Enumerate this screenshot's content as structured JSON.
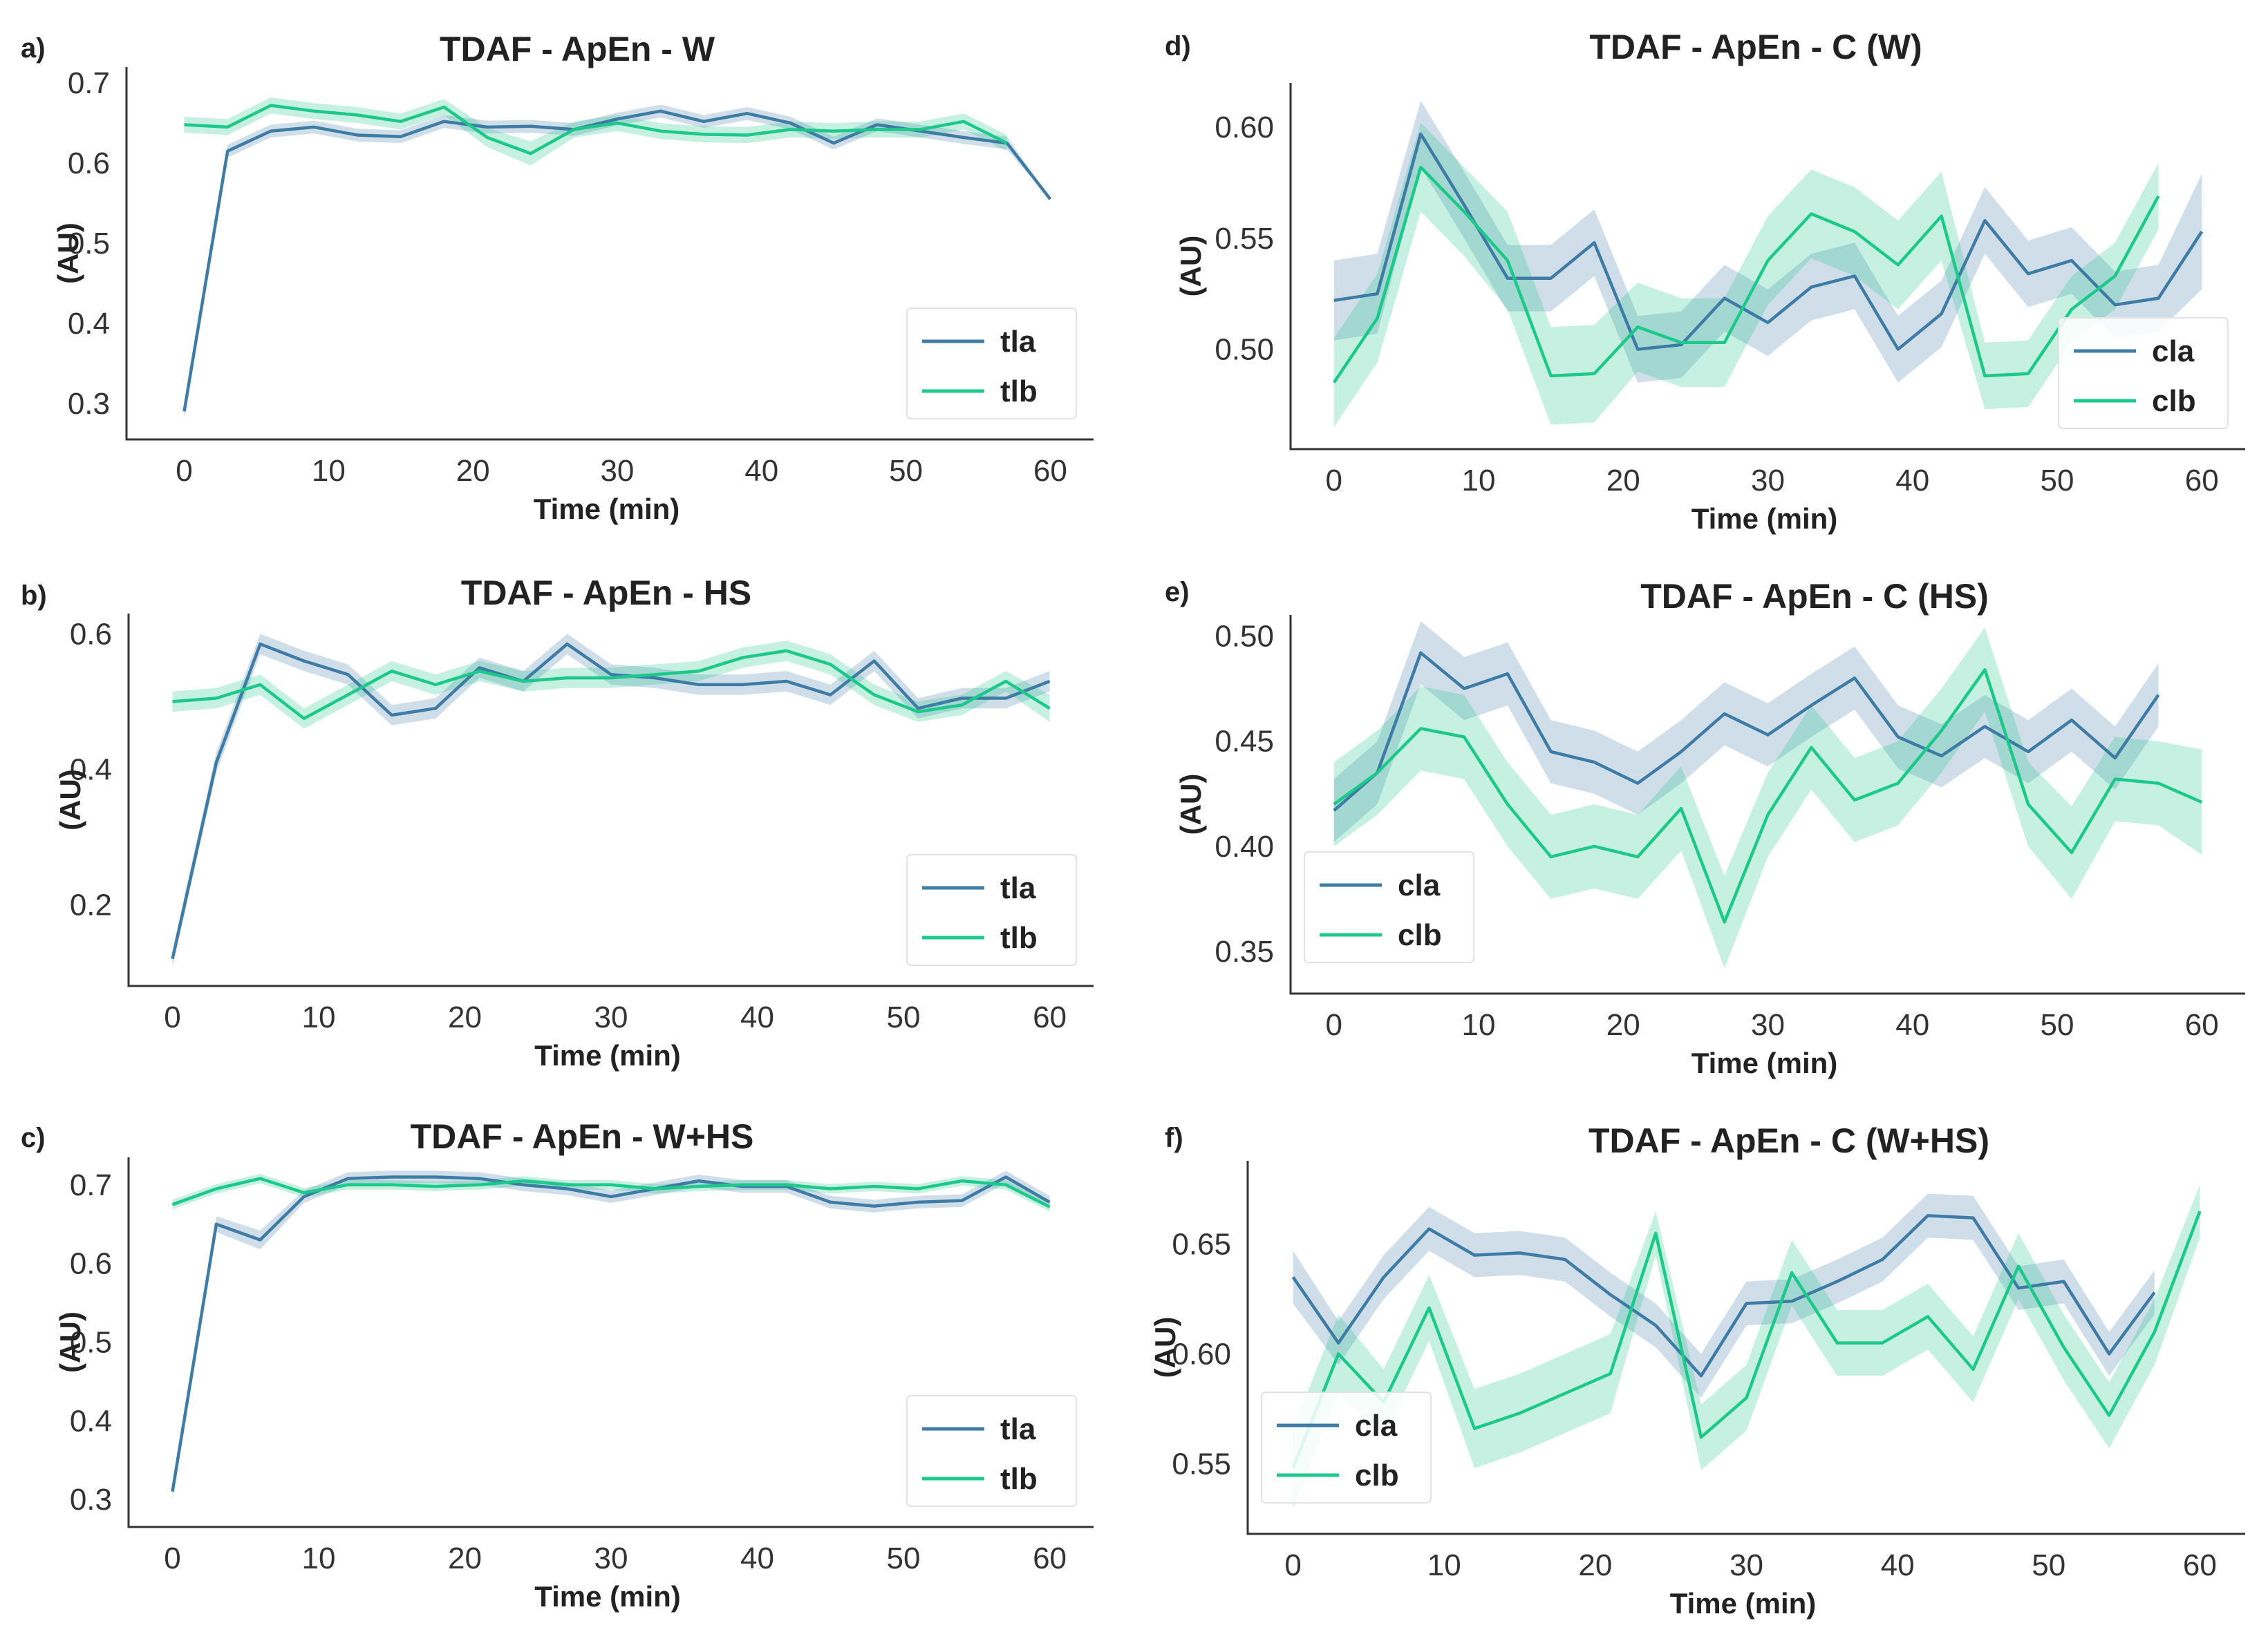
{
  "colors": {
    "a": "#3e7ca6",
    "b": "#1dc98a"
  },
  "chart_data": [
    {
      "id": "a",
      "panel_label": "a)",
      "type": "line",
      "title": "TDAF - ApEn - W",
      "xlabel": "Time (min)",
      "ylabel": "(AU)",
      "xlim": [
        -4,
        63
      ],
      "ylim": [
        0.255,
        0.72
      ],
      "xticks": [
        "0",
        "10",
        "20",
        "30",
        "40",
        "50",
        "60"
      ],
      "yticks": [
        "0.3",
        "0.4",
        "0.5",
        "0.6",
        "0.7"
      ],
      "legend_position": "bottom-right",
      "series": [
        {
          "name": "tla",
          "x": [
            0,
            3,
            6,
            9,
            12,
            15,
            18,
            21,
            24,
            27,
            30,
            33,
            36,
            39,
            42,
            45,
            48,
            51,
            54,
            57,
            60
          ],
          "y": [
            0.29,
            0.615,
            0.64,
            0.645,
            0.635,
            0.633,
            0.652,
            0.645,
            0.646,
            0.642,
            0.655,
            0.665,
            0.652,
            0.662,
            0.65,
            0.625,
            0.648,
            0.64,
            0.632,
            0.625,
            0.555
          ],
          "err": [
            0.008,
            0.008,
            0.008,
            0.008,
            0.008,
            0.008,
            0.008,
            0.008,
            0.008,
            0.008,
            0.008,
            0.008,
            0.008,
            0.008,
            0.008,
            0.008,
            0.008,
            0.008,
            0.008,
            0.008,
            0
          ]
        },
        {
          "name": "tlb",
          "x": [
            0,
            3,
            6,
            9,
            12,
            15,
            18,
            21,
            24,
            27,
            30,
            33,
            36,
            39,
            42,
            45,
            48,
            51,
            54,
            57
          ],
          "y": [
            0.648,
            0.645,
            0.672,
            0.665,
            0.66,
            0.652,
            0.67,
            0.632,
            0.612,
            0.642,
            0.65,
            0.64,
            0.636,
            0.635,
            0.642,
            0.64,
            0.642,
            0.642,
            0.652,
            0.625
          ],
          "err": [
            0.01,
            0.01,
            0.01,
            0.01,
            0.01,
            0.01,
            0.01,
            0.012,
            0.015,
            0.01,
            0.01,
            0.01,
            0.01,
            0.01,
            0.01,
            0.01,
            0.01,
            0.01,
            0.01,
            0.01
          ]
        }
      ]
    },
    {
      "id": "b",
      "panel_label": "b)",
      "type": "line",
      "title": "TDAF - ApEn - HS",
      "xlabel": "Time (min)",
      "ylabel": "(AU)",
      "xlim": [
        -3,
        63
      ],
      "ylim": [
        0.08,
        0.63
      ],
      "xticks": [
        "0",
        "10",
        "20",
        "30",
        "40",
        "50",
        "60"
      ],
      "yticks": [
        "0.2",
        "0.4",
        "0.6"
      ],
      "legend_position": "bottom-right",
      "series": [
        {
          "name": "tla",
          "x": [
            0,
            3,
            6,
            9,
            12,
            15,
            18,
            21,
            24,
            27,
            30,
            33,
            36,
            39,
            42,
            45,
            48,
            51,
            54,
            57,
            60
          ],
          "y": [
            0.12,
            0.41,
            0.585,
            0.56,
            0.54,
            0.48,
            0.49,
            0.55,
            0.53,
            0.585,
            0.54,
            0.535,
            0.525,
            0.525,
            0.53,
            0.51,
            0.56,
            0.49,
            0.505,
            0.505,
            0.53
          ],
          "err": [
            0.012,
            0.015,
            0.015,
            0.015,
            0.015,
            0.015,
            0.015,
            0.015,
            0.015,
            0.015,
            0.015,
            0.015,
            0.015,
            0.015,
            0.015,
            0.015,
            0.015,
            0.015,
            0.015,
            0.015,
            0.015
          ]
        },
        {
          "name": "tlb",
          "x": [
            0,
            3,
            6,
            9,
            12,
            15,
            18,
            21,
            24,
            27,
            30,
            33,
            36,
            39,
            42,
            45,
            48,
            51,
            54,
            57,
            60
          ],
          "y": [
            0.5,
            0.505,
            0.525,
            0.475,
            0.51,
            0.545,
            0.525,
            0.545,
            0.53,
            0.535,
            0.535,
            0.54,
            0.545,
            0.565,
            0.575,
            0.555,
            0.51,
            0.485,
            0.495,
            0.53,
            0.49
          ],
          "err": [
            0.015,
            0.015,
            0.015,
            0.015,
            0.015,
            0.015,
            0.015,
            0.015,
            0.015,
            0.015,
            0.015,
            0.015,
            0.015,
            0.015,
            0.015,
            0.015,
            0.015,
            0.015,
            0.015,
            0.015,
            0.02
          ]
        }
      ]
    },
    {
      "id": "c",
      "panel_label": "c)",
      "type": "line",
      "title": "TDAF - ApEn - W+HS",
      "xlabel": "Time (min)",
      "ylabel": "(AU)",
      "xlim": [
        -3,
        63
      ],
      "ylim": [
        0.265,
        0.735
      ],
      "xticks": [
        "0",
        "10",
        "20",
        "30",
        "40",
        "50",
        "60"
      ],
      "yticks": [
        "0.3",
        "0.4",
        "0.5",
        "0.6",
        "0.7"
      ],
      "legend_position": "bottom-right",
      "series": [
        {
          "name": "tla",
          "x": [
            0,
            3,
            6,
            9,
            12,
            15,
            18,
            21,
            24,
            27,
            30,
            33,
            36,
            39,
            42,
            45,
            48,
            51,
            54,
            57,
            60
          ],
          "y": [
            0.31,
            0.65,
            0.63,
            0.685,
            0.708,
            0.71,
            0.71,
            0.708,
            0.7,
            0.695,
            0.685,
            0.695,
            0.705,
            0.698,
            0.698,
            0.678,
            0.673,
            0.678,
            0.68,
            0.71,
            0.678
          ],
          "err": [
            0.01,
            0.01,
            0.012,
            0.008,
            0.008,
            0.008,
            0.008,
            0.008,
            0.008,
            0.008,
            0.008,
            0.008,
            0.008,
            0.008,
            0.008,
            0.008,
            0.008,
            0.008,
            0.008,
            0.008,
            0.008
          ]
        },
        {
          "name": "tlb",
          "x": [
            0,
            3,
            6,
            9,
            12,
            15,
            18,
            21,
            24,
            27,
            30,
            33,
            36,
            39,
            42,
            45,
            48,
            51,
            54,
            57,
            60
          ],
          "y": [
            0.675,
            0.695,
            0.708,
            0.69,
            0.7,
            0.7,
            0.698,
            0.7,
            0.705,
            0.7,
            0.7,
            0.695,
            0.698,
            0.7,
            0.7,
            0.695,
            0.698,
            0.695,
            0.705,
            0.7,
            0.672
          ],
          "err": [
            0.006,
            0.006,
            0.006,
            0.006,
            0.006,
            0.006,
            0.006,
            0.006,
            0.006,
            0.006,
            0.006,
            0.006,
            0.006,
            0.006,
            0.006,
            0.006,
            0.006,
            0.006,
            0.006,
            0.006,
            0.006
          ]
        }
      ]
    },
    {
      "id": "d",
      "panel_label": "d)",
      "type": "line",
      "title": "TDAF - ApEn - C (W)",
      "xlabel": "Time (min)",
      "ylabel": "(AU)",
      "xlim": [
        -3,
        63
      ],
      "ylim": [
        0.455,
        0.62
      ],
      "xticks": [
        "0",
        "10",
        "20",
        "30",
        "40",
        "50",
        "60"
      ],
      "yticks": [
        "0.50",
        "0.55",
        "0.60"
      ],
      "legend_position": "bottom-right",
      "series": [
        {
          "name": "cla",
          "x": [
            0,
            3,
            6,
            9,
            12,
            15,
            18,
            21,
            24,
            27,
            30,
            33,
            36,
            39,
            42,
            45,
            48,
            51,
            54,
            57,
            60
          ],
          "y": [
            0.522,
            0.525,
            0.597,
            0.565,
            0.532,
            0.532,
            0.548,
            0.5,
            0.502,
            0.523,
            0.512,
            0.528,
            0.533,
            0.5,
            0.516,
            0.558,
            0.534,
            0.54,
            0.52,
            0.523,
            0.553
          ],
          "err": [
            0.018,
            0.018,
            0.015,
            0.015,
            0.015,
            0.015,
            0.015,
            0.015,
            0.015,
            0.015,
            0.015,
            0.015,
            0.015,
            0.015,
            0.015,
            0.015,
            0.015,
            0.015,
            0.015,
            0.015,
            0.026
          ]
        },
        {
          "name": "clb",
          "x": [
            0,
            3,
            6,
            9,
            12,
            15,
            18,
            21,
            24,
            27,
            30,
            33,
            36,
            39,
            42,
            45,
            48,
            51,
            54,
            57
          ],
          "y": [
            0.485,
            0.514,
            0.582,
            0.562,
            0.54,
            0.488,
            0.489,
            0.51,
            0.503,
            0.503,
            0.54,
            0.561,
            0.553,
            0.538,
            0.56,
            0.488,
            0.489,
            0.518,
            0.533,
            0.569
          ],
          "err": [
            0.02,
            0.02,
            0.02,
            0.02,
            0.022,
            0.022,
            0.022,
            0.02,
            0.02,
            0.02,
            0.02,
            0.02,
            0.02,
            0.02,
            0.02,
            0.015,
            0.015,
            0.015,
            0.015,
            0.015
          ]
        }
      ]
    },
    {
      "id": "e",
      "panel_label": "e)",
      "type": "line",
      "title": "TDAF - ApEn - C (HS)",
      "xlabel": "Time (min)",
      "ylabel": "(AU)",
      "xlim": [
        -3,
        63
      ],
      "ylim": [
        0.33,
        0.51
      ],
      "xticks": [
        "0",
        "10",
        "20",
        "30",
        "40",
        "50",
        "60"
      ],
      "yticks": [
        "0.35",
        "0.40",
        "0.45",
        "0.50"
      ],
      "legend_position": "bottom-left",
      "series": [
        {
          "name": "cla",
          "x": [
            0,
            3,
            6,
            9,
            12,
            15,
            18,
            21,
            24,
            27,
            30,
            33,
            36,
            39,
            42,
            45,
            48,
            51,
            54,
            57
          ],
          "y": [
            0.417,
            0.435,
            0.492,
            0.475,
            0.482,
            0.445,
            0.44,
            0.43,
            0.445,
            0.463,
            0.453,
            0.467,
            0.48,
            0.452,
            0.443,
            0.457,
            0.445,
            0.46,
            0.442,
            0.472
          ],
          "err": [
            0.015,
            0.015,
            0.015,
            0.015,
            0.015,
            0.015,
            0.015,
            0.015,
            0.015,
            0.015,
            0.015,
            0.015,
            0.015,
            0.015,
            0.015,
            0.015,
            0.015,
            0.015,
            0.015,
            0.015
          ]
        },
        {
          "name": "clb",
          "x": [
            0,
            3,
            6,
            9,
            12,
            15,
            18,
            21,
            24,
            27,
            30,
            33,
            36,
            39,
            42,
            45,
            48,
            51,
            54,
            57,
            60
          ],
          "y": [
            0.42,
            0.435,
            0.456,
            0.452,
            0.42,
            0.395,
            0.4,
            0.395,
            0.418,
            0.364,
            0.415,
            0.447,
            0.422,
            0.43,
            0.455,
            0.484,
            0.42,
            0.397,
            0.432,
            0.43,
            0.421
          ],
          "err": [
            0.02,
            0.02,
            0.02,
            0.02,
            0.02,
            0.02,
            0.02,
            0.02,
            0.02,
            0.022,
            0.02,
            0.02,
            0.02,
            0.02,
            0.02,
            0.02,
            0.02,
            0.022,
            0.02,
            0.02,
            0.025
          ]
        }
      ]
    },
    {
      "id": "f",
      "panel_label": "f)",
      "type": "line",
      "title": "TDAF - ApEn - C (W+HS)",
      "xlabel": "Time (min)",
      "ylabel": "(AU)",
      "xlim": [
        -3,
        63
      ],
      "ylim": [
        0.518,
        0.688
      ],
      "xticks": [
        "0",
        "10",
        "20",
        "30",
        "40",
        "50",
        "60"
      ],
      "yticks": [
        "0.55",
        "0.60",
        "0.65"
      ],
      "legend_position": "bottom-left",
      "series": [
        {
          "name": "cla",
          "x": [
            0,
            3,
            6,
            9,
            12,
            15,
            18,
            21,
            24,
            27,
            30,
            33,
            36,
            39,
            42,
            45,
            48,
            51,
            54,
            57
          ],
          "y": [
            0.635,
            0.605,
            0.635,
            0.657,
            0.645,
            0.646,
            0.643,
            0.627,
            0.613,
            0.59,
            0.623,
            0.624,
            0.633,
            0.643,
            0.663,
            0.662,
            0.63,
            0.633,
            0.6,
            0.628
          ],
          "err": [
            0.012,
            0.01,
            0.01,
            0.01,
            0.01,
            0.01,
            0.01,
            0.01,
            0.01,
            0.01,
            0.01,
            0.01,
            0.01,
            0.01,
            0.01,
            0.01,
            0.01,
            0.01,
            0.01,
            0.01
          ]
        },
        {
          "name": "clb",
          "x": [
            0,
            3,
            6,
            9,
            12,
            15,
            18,
            21,
            24,
            27,
            30,
            33,
            36,
            39,
            42,
            45,
            48,
            51,
            54,
            57,
            60
          ],
          "y": [
            0.548,
            0.6,
            0.578,
            0.621,
            0.566,
            0.573,
            0.582,
            0.591,
            0.655,
            0.562,
            0.58,
            0.637,
            0.605,
            0.605,
            0.617,
            0.593,
            0.64,
            0.603,
            0.572,
            0.61,
            0.665
          ],
          "err": [
            0.018,
            0.018,
            0.015,
            0.015,
            0.018,
            0.018,
            0.018,
            0.018,
            0.01,
            0.015,
            0.015,
            0.015,
            0.015,
            0.015,
            0.015,
            0.015,
            0.015,
            0.015,
            0.015,
            0.015,
            0.012
          ]
        }
      ]
    }
  ]
}
